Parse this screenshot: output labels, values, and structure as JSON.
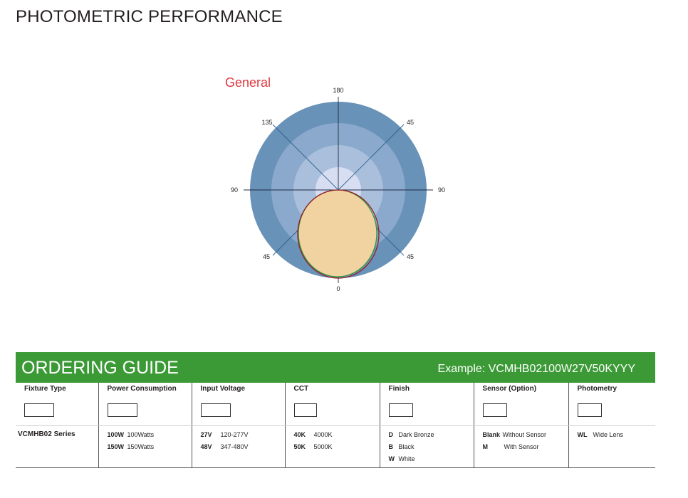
{
  "header": {
    "title": "PHOTOMETRIC PERFORMANCE"
  },
  "diagram": {
    "label": "General",
    "label_color": "#e0373f",
    "angles": {
      "top": "180",
      "left": "90",
      "right": "90",
      "bottom": "0",
      "upper_left": "135",
      "upper_right": "45",
      "lower_left": "45",
      "lower_right": "45"
    },
    "ring_colors": [
      "#6892b8",
      "#8aa9cc",
      "#a9bfdc",
      "#c3d1ea",
      "#dde3f3"
    ],
    "curve_fill": "#f1d3a1",
    "curve_colors": [
      "#9a1c2b",
      "#2f9a3a"
    ]
  },
  "guide": {
    "title": "ORDERING GUIDE",
    "example": "Example: VCMHB02100W27V50KYYY",
    "bar_color": "#3c9a36",
    "columns": [
      {
        "header": "Fixture Type",
        "series": "VCMHB02 Series",
        "options": []
      },
      {
        "header": "Power Consumption",
        "options": [
          {
            "code": "100W",
            "desc": "100Watts"
          },
          {
            "code": "150W",
            "desc": "150Watts"
          }
        ]
      },
      {
        "header": "Input Voltage",
        "options": [
          {
            "code": "27V",
            "desc": "120-277V"
          },
          {
            "code": "48V",
            "desc": "347-480V"
          }
        ]
      },
      {
        "header": "CCT",
        "options": [
          {
            "code": "40K",
            "desc": "4000K"
          },
          {
            "code": "50K",
            "desc": "5000K"
          }
        ]
      },
      {
        "header": "Finish",
        "options": [
          {
            "code": "D",
            "desc": "Dark Bronze"
          },
          {
            "code": "B",
            "desc": "Black"
          },
          {
            "code": "W",
            "desc": "White"
          }
        ]
      },
      {
        "header": "Sensor (Option)",
        "options": [
          {
            "code": "Blank",
            "desc": "Without Sensor"
          },
          {
            "code": "M",
            "desc": "With Sensor"
          }
        ]
      },
      {
        "header": "Photometry",
        "options": [
          {
            "code": "WL",
            "desc": "Wide Lens"
          }
        ]
      }
    ]
  }
}
